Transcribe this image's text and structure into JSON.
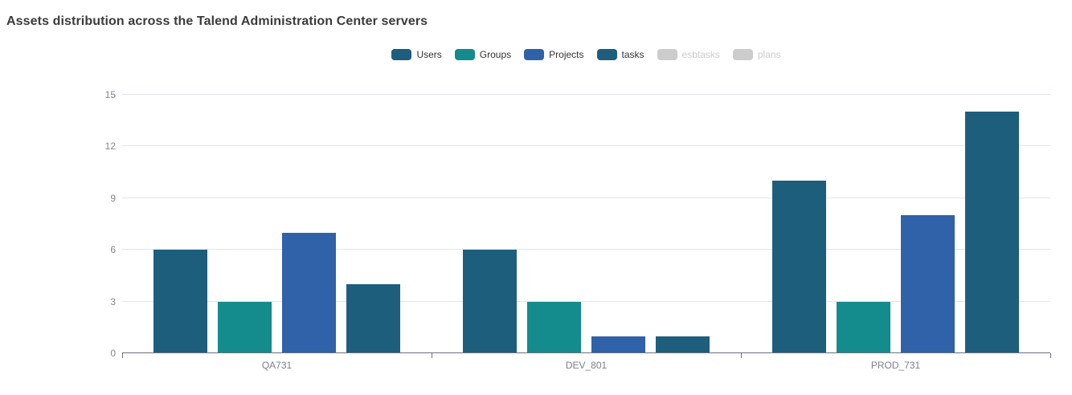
{
  "title": "Assets distribution across the Talend Administration Center servers",
  "colors": {
    "users": "#1d5e7d",
    "groups": "#148b8d",
    "projects": "#2f62a8",
    "tasks": "#1d5e7d",
    "disabled": "#cccccc",
    "gridline": "#e0e6f1",
    "axis_line": "#6e7079",
    "axis_label": "#7d8088",
    "title_text": "#3b3b3b",
    "legend_text": "#333333"
  },
  "legend": {
    "items": [
      {
        "label": "Users",
        "color": "#1d5e7d",
        "disabled": false
      },
      {
        "label": "Groups",
        "color": "#148b8d",
        "disabled": false
      },
      {
        "label": "Projects",
        "color": "#2f62a8",
        "disabled": false
      },
      {
        "label": "tasks",
        "color": "#1d5e7d",
        "disabled": false
      },
      {
        "label": "esbtasks",
        "color": "#cccccc",
        "disabled": true
      },
      {
        "label": "plans",
        "color": "#cccccc",
        "disabled": true
      }
    ]
  },
  "chart_data": {
    "type": "bar",
    "title": "Assets distribution across the Talend Administration Center servers",
    "categories": [
      "QA731",
      "DEV_801",
      "PROD_731"
    ],
    "series": [
      {
        "name": "Users",
        "color": "#1d5e7d",
        "enabled": true,
        "values": [
          6,
          6,
          10
        ]
      },
      {
        "name": "Groups",
        "color": "#148b8d",
        "enabled": true,
        "values": [
          3,
          3,
          3
        ]
      },
      {
        "name": "Projects",
        "color": "#2f62a8",
        "enabled": true,
        "values": [
          7,
          1,
          8
        ]
      },
      {
        "name": "tasks",
        "color": "#1d5e7d",
        "enabled": true,
        "values": [
          4,
          1,
          14
        ]
      },
      {
        "name": "esbtasks",
        "color": "#cccccc",
        "enabled": false,
        "values": null
      },
      {
        "name": "plans",
        "color": "#cccccc",
        "enabled": false,
        "values": null
      }
    ],
    "xlabel": "",
    "ylabel": "",
    "ylim": [
      0,
      15
    ],
    "yticks": [
      0,
      3,
      6,
      9,
      12,
      15
    ],
    "grid": true,
    "legend_position": "top-center"
  }
}
